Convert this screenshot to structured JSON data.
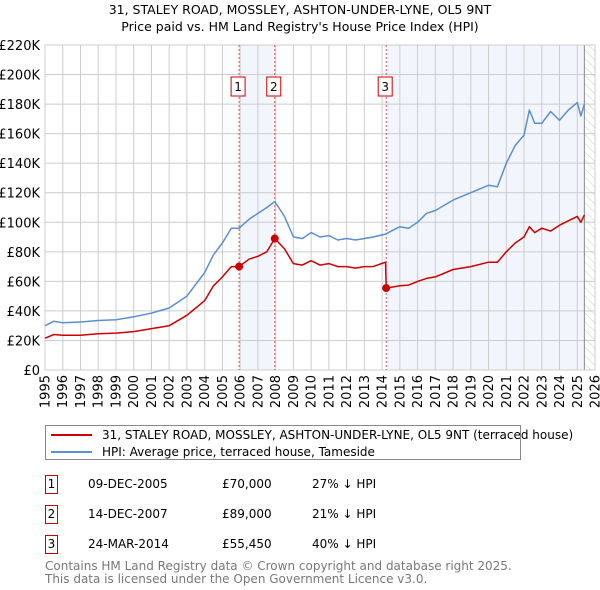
{
  "chart_data": {
    "type": "line",
    "title": "31, STALEY ROAD, MOSSLEY, ASHTON-UNDER-LYNE, OL5 9NT",
    "subtitle": "Price paid vs. HM Land Registry's House Price Index (HPI)",
    "xlim": [
      1995,
      2026
    ],
    "ylim": [
      0,
      220000
    ],
    "x_ticks": [
      "1995",
      "1996",
      "1997",
      "1998",
      "1999",
      "2000",
      "2001",
      "2002",
      "2003",
      "2004",
      "2005",
      "2006",
      "2007",
      "2008",
      "2009",
      "2010",
      "2011",
      "2012",
      "2013",
      "2014",
      "2015",
      "2016",
      "2017",
      "2018",
      "2019",
      "2020",
      "2021",
      "2022",
      "2023",
      "2024",
      "2025",
      "2026"
    ],
    "y_ticks": [
      {
        "v": 0,
        "label": "£0"
      },
      {
        "v": 20000,
        "label": "£20K"
      },
      {
        "v": 40000,
        "label": "£40K"
      },
      {
        "v": 60000,
        "label": "£60K"
      },
      {
        "v": 80000,
        "label": "£80K"
      },
      {
        "v": 100000,
        "label": "£100K"
      },
      {
        "v": 120000,
        "label": "£120K"
      },
      {
        "v": 140000,
        "label": "£140K"
      },
      {
        "v": 160000,
        "label": "£160K"
      },
      {
        "v": 180000,
        "label": "£180K"
      },
      {
        "v": 200000,
        "label": "£200K"
      },
      {
        "v": 220000,
        "label": "£220K"
      }
    ],
    "grid": true,
    "series": [
      {
        "name": "31, STALEY ROAD, MOSSLEY, ASHTON-UNDER-LYNE, OL5 9NT (terraced house)",
        "color": "#cc0000",
        "x": [
          1995,
          1995.5,
          1996,
          1997,
          1998,
          1999,
          2000,
          2001,
          2002,
          2003,
          2003.5,
          2004,
          2004.5,
          2005,
          2005.5,
          2005.94,
          2006.5,
          2007,
          2007.5,
          2007.95,
          2008.5,
          2009,
          2009.5,
          2010,
          2010.5,
          2011,
          2011.5,
          2012,
          2012.5,
          2013,
          2013.5,
          2014.2,
          2014.23,
          2015,
          2015.5,
          2016,
          2016.5,
          2017,
          2018,
          2019,
          2020,
          2020.5,
          2021,
          2021.5,
          2022,
          2022.3,
          2022.6,
          2023,
          2023.5,
          2024,
          2024.5,
          2025,
          2025.2,
          2025.4
        ],
        "y": [
          21500,
          24000,
          23500,
          23500,
          24500,
          25000,
          26000,
          28000,
          30000,
          37000,
          42000,
          47000,
          57000,
          63000,
          70000,
          70000,
          75000,
          77000,
          80000,
          89000,
          82000,
          72000,
          71000,
          74000,
          71000,
          72000,
          70000,
          70000,
          69000,
          70000,
          70000,
          73000,
          55450,
          57000,
          57500,
          60000,
          62000,
          63000,
          68000,
          70000,
          73000,
          73000,
          80000,
          86000,
          90000,
          97000,
          93000,
          96000,
          94000,
          98000,
          101000,
          104000,
          100000,
          105000
        ]
      },
      {
        "name": "HPI: Average price, terraced house, Tameside",
        "color": "#5b8fd0",
        "x": [
          1995,
          1995.5,
          1996,
          1997,
          1998,
          1999,
          2000,
          2001,
          2002,
          2003,
          2003.5,
          2004,
          2004.5,
          2005,
          2005.5,
          2005.94,
          2006.5,
          2007,
          2007.5,
          2007.95,
          2008.5,
          2009,
          2009.5,
          2010,
          2010.5,
          2011,
          2011.5,
          2012,
          2012.5,
          2013,
          2013.5,
          2014.2,
          2015,
          2015.5,
          2016,
          2016.5,
          2017,
          2018,
          2019,
          2020,
          2020.5,
          2021,
          2021.5,
          2022,
          2022.3,
          2022.6,
          2023,
          2023.5,
          2024,
          2024.5,
          2025,
          2025.2,
          2025.4
        ],
        "y": [
          30000,
          33000,
          32000,
          32500,
          33500,
          34000,
          36000,
          38500,
          42000,
          50000,
          58000,
          66000,
          78000,
          86000,
          96000,
          96000,
          102000,
          106000,
          110000,
          114000,
          104000,
          90000,
          89000,
          93000,
          90000,
          91000,
          88000,
          89000,
          88000,
          89000,
          90000,
          92000,
          97000,
          96000,
          100000,
          106000,
          108000,
          115000,
          120000,
          125000,
          124000,
          140000,
          152000,
          159000,
          176000,
          167000,
          167000,
          175000,
          169000,
          176000,
          181000,
          172000,
          180000
        ]
      }
    ],
    "sales": [
      {
        "id": "1",
        "x": 2005.94,
        "y": 70000,
        "date": "09-DEC-2005",
        "price": "£70,000",
        "hpi": "27% ↓ HPI"
      },
      {
        "id": "2",
        "x": 2007.95,
        "y": 89000,
        "date": "14-DEC-2007",
        "price": "£89,000",
        "hpi": "21% ↓ HPI"
      },
      {
        "id": "3",
        "x": 2014.23,
        "y": 55450,
        "date": "24-MAR-2014",
        "price": "£55,450",
        "hpi": "40% ↓ HPI"
      }
    ],
    "shaded_ranges": [
      [
        2005.94,
        2007.95
      ],
      [
        2014.23,
        2025.4
      ]
    ],
    "hatched_from": 2025.4,
    "legend_placement": "below"
  },
  "legend": {
    "property": "31, STALEY ROAD, MOSSLEY, ASHTON-UNDER-LYNE, OL5 9NT (terraced house)",
    "hpi": "HPI: Average price, terraced house, Tameside"
  },
  "footer": {
    "line1": "Contains HM Land Registry data © Crown copyright and database right 2025.",
    "line2": "This data is licensed under the Open Government Licence v3.0."
  }
}
